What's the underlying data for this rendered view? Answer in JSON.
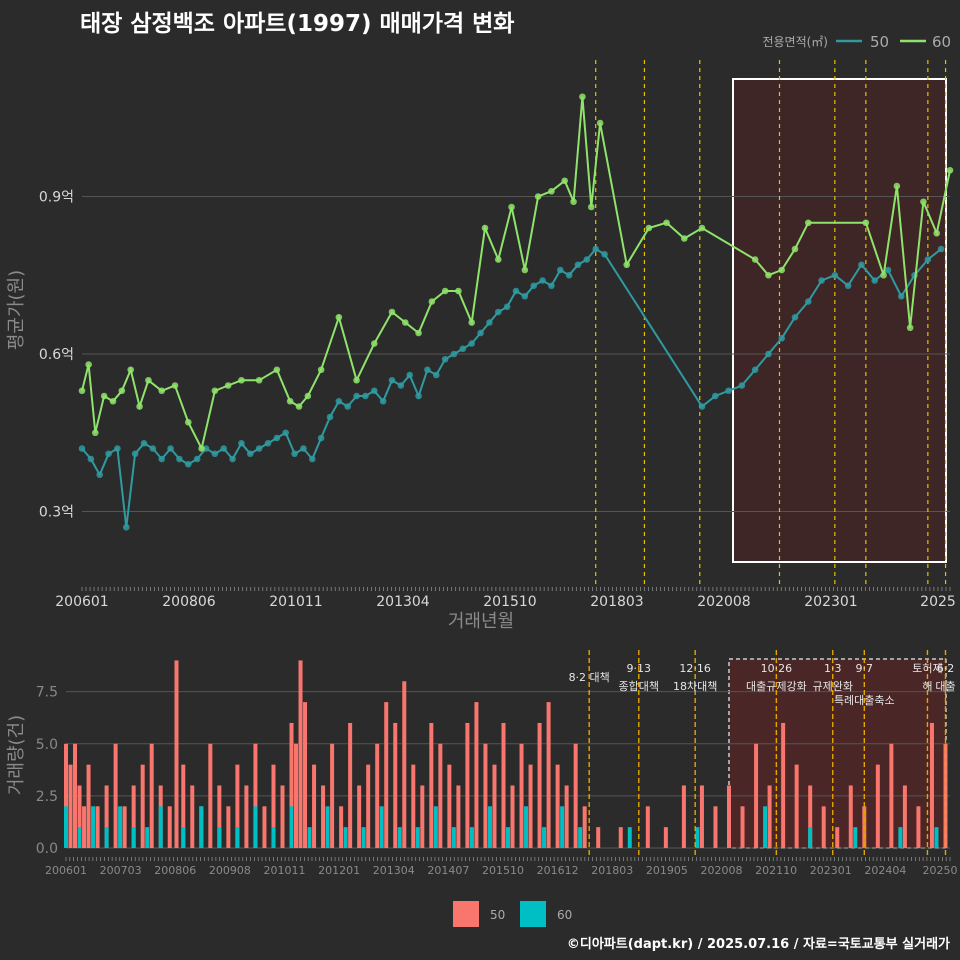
{
  "title": "태장 삼정백조 아파트(1997) 매매가격 변화",
  "credit": "©디아파트(dapt.kr) / 2025.07.16 / 자료=국토교통부 실거래가",
  "chart_data": [
    {
      "type": "line",
      "xlabel": "거래년월",
      "ylabel": "평균가(원)",
      "legend_title": "전용면적(㎡)",
      "legend_position": "top-right",
      "x_ticks": [
        "200601",
        "200806",
        "201011",
        "201304",
        "201510",
        "201803",
        "202008",
        "202301",
        "2025"
      ],
      "y_ticks": [
        {
          "v": 0.3,
          "label": "0.3억"
        },
        {
          "v": 0.6,
          "label": "0.6억"
        },
        {
          "v": 0.9,
          "label": "0.9억"
        }
      ],
      "ylim": [
        0.16,
        1.16
      ],
      "xlim": [
        2006.0,
        2025.6
      ],
      "highlight_range": [
        "2020.7",
        "2025.6"
      ],
      "policy_lines": [
        2017.6,
        2018.7,
        2019.95,
        2021.75,
        2023.0,
        2023.7,
        2025.1,
        2025.5
      ],
      "series": [
        {
          "name": "50",
          "color": "#2f9aa0",
          "x": [
            2006.0,
            2006.2,
            2006.4,
            2006.6,
            2006.8,
            2007.0,
            2007.2,
            2007.4,
            2007.6,
            2007.8,
            2008.0,
            2008.2,
            2008.4,
            2008.6,
            2008.8,
            2009.0,
            2009.2,
            2009.4,
            2009.6,
            2009.8,
            2010.0,
            2010.2,
            2010.4,
            2010.6,
            2010.8,
            2011.0,
            2011.2,
            2011.4,
            2011.6,
            2011.8,
            2012.0,
            2012.2,
            2012.4,
            2012.6,
            2012.8,
            2013.0,
            2013.2,
            2013.4,
            2013.6,
            2013.8,
            2014.0,
            2014.2,
            2014.4,
            2014.6,
            2014.8,
            2015.0,
            2015.2,
            2015.4,
            2015.6,
            2015.8,
            2016.0,
            2016.2,
            2016.4,
            2016.6,
            2016.8,
            2017.0,
            2017.2,
            2017.4,
            2017.6,
            2017.8,
            2020.0,
            2020.3,
            2020.6,
            2020.9,
            2021.2,
            2021.5,
            2021.8,
            2022.1,
            2022.4,
            2022.7,
            2023.0,
            2023.3,
            2023.6,
            2023.9,
            2024.2,
            2024.5,
            2024.8,
            2025.1,
            2025.4
          ],
          "values": [
            0.42,
            0.4,
            0.37,
            0.41,
            0.42,
            0.27,
            0.41,
            0.43,
            0.42,
            0.4,
            0.42,
            0.4,
            0.39,
            0.4,
            0.42,
            0.41,
            0.42,
            0.4,
            0.43,
            0.41,
            0.42,
            0.43,
            0.44,
            0.45,
            0.41,
            0.42,
            0.4,
            0.44,
            0.48,
            0.51,
            0.5,
            0.52,
            0.52,
            0.53,
            0.51,
            0.55,
            0.54,
            0.56,
            0.52,
            0.57,
            0.56,
            0.59,
            0.6,
            0.61,
            0.62,
            0.64,
            0.66,
            0.68,
            0.69,
            0.72,
            0.71,
            0.73,
            0.74,
            0.73,
            0.76,
            0.75,
            0.77,
            0.78,
            0.8,
            0.79,
            0.5,
            0.52,
            0.53,
            0.54,
            0.57,
            0.6,
            0.63,
            0.67,
            0.7,
            0.74,
            0.75,
            0.73,
            0.77,
            0.74,
            0.76,
            0.71,
            0.75,
            0.78,
            0.8
          ]
        },
        {
          "name": "60",
          "color": "#8fe36b",
          "x": [
            2006.0,
            2006.15,
            2006.3,
            2006.5,
            2006.7,
            2006.9,
            2007.1,
            2007.3,
            2007.5,
            2007.8,
            2008.1,
            2008.4,
            2008.7,
            2009.0,
            2009.3,
            2009.6,
            2010.0,
            2010.4,
            2010.7,
            2010.9,
            2011.1,
            2011.4,
            2011.8,
            2012.2,
            2012.6,
            2013.0,
            2013.3,
            2013.6,
            2013.9,
            2014.2,
            2014.5,
            2014.8,
            2015.1,
            2015.4,
            2015.7,
            2016.0,
            2016.3,
            2016.6,
            2016.9,
            2017.1,
            2017.3,
            2017.5,
            2017.7,
            2018.3,
            2018.8,
            2019.2,
            2019.6,
            2020.0,
            2021.2,
            2021.5,
            2021.8,
            2022.1,
            2022.4,
            2023.7,
            2024.1,
            2024.4,
            2024.7,
            2025.0,
            2025.3,
            2025.6
          ],
          "values": [
            0.53,
            0.58,
            0.45,
            0.52,
            0.51,
            0.53,
            0.57,
            0.5,
            0.55,
            0.53,
            0.54,
            0.47,
            0.42,
            0.53,
            0.54,
            0.55,
            0.55,
            0.57,
            0.51,
            0.5,
            0.52,
            0.57,
            0.67,
            0.55,
            0.62,
            0.68,
            0.66,
            0.64,
            0.7,
            0.72,
            0.72,
            0.66,
            0.84,
            0.78,
            0.88,
            0.76,
            0.9,
            0.91,
            0.93,
            0.89,
            1.09,
            0.88,
            1.04,
            0.77,
            0.84,
            0.85,
            0.82,
            0.84,
            0.78,
            0.75,
            0.76,
            0.8,
            0.85,
            0.85,
            0.75,
            0.92,
            0.65,
            0.89,
            0.83,
            0.95
          ]
        }
      ]
    },
    {
      "type": "bar",
      "xlabel": "",
      "ylabel": "거래량(건)",
      "legend_position": "bottom",
      "x_ticks": [
        "200601",
        "200703",
        "200806",
        "200908",
        "201011",
        "201201",
        "201304",
        "201407",
        "201510",
        "201612",
        "201803",
        "201905",
        "202008",
        "202110",
        "202301",
        "202404",
        "20250"
      ],
      "y_ticks": [
        {
          "v": 0,
          "label": "0.0"
        },
        {
          "v": 2.5,
          "label": "2.5"
        },
        {
          "v": 5,
          "label": "5.0"
        },
        {
          "v": 7.5,
          "label": "7.5"
        }
      ],
      "ylim": [
        0,
        9.5
      ],
      "annotations": [
        {
          "x": 2017.6,
          "text": "8·2 대책"
        },
        {
          "x": 2018.7,
          "text": "9·13 종합대책"
        },
        {
          "x": 2019.95,
          "text": "12·16 18차대책"
        },
        {
          "x": 2021.75,
          "text": "10·26 대출규제강화"
        },
        {
          "x": 2023.0,
          "text": "1·3 규제완화"
        },
        {
          "x": 2023.7,
          "text": "9·7 특례대출축소"
        },
        {
          "x": 2025.1,
          "text": "토허제 해"
        },
        {
          "x": 2025.5,
          "text": "6·2 대출"
        }
      ],
      "series": [
        {
          "name": "50",
          "color": "#f8766d",
          "x": [
            2006.0,
            2006.1,
            2006.2,
            2006.3,
            2006.4,
            2006.5,
            2006.7,
            2006.9,
            2007.1,
            2007.3,
            2007.5,
            2007.7,
            2007.9,
            2008.1,
            2008.3,
            2008.45,
            2008.6,
            2008.8,
            2009.0,
            2009.2,
            2009.4,
            2009.6,
            2009.8,
            2010.0,
            2010.2,
            2010.4,
            2010.6,
            2010.8,
            2011.0,
            2011.1,
            2011.2,
            2011.3,
            2011.5,
            2011.7,
            2011.9,
            2012.1,
            2012.3,
            2012.5,
            2012.7,
            2012.9,
            2013.1,
            2013.3,
            2013.5,
            2013.7,
            2013.9,
            2014.1,
            2014.3,
            2014.5,
            2014.7,
            2014.9,
            2015.1,
            2015.3,
            2015.5,
            2015.7,
            2015.9,
            2016.1,
            2016.3,
            2016.5,
            2016.7,
            2016.9,
            2017.1,
            2017.3,
            2017.5,
            2017.8,
            2018.3,
            2018.9,
            2019.3,
            2019.7,
            2020.1,
            2020.4,
            2020.7,
            2021.0,
            2021.3,
            2021.6,
            2021.9,
            2022.2,
            2022.5,
            2022.8,
            2023.1,
            2023.4,
            2023.7,
            2024.0,
            2024.3,
            2024.6,
            2024.9,
            2025.2,
            2025.5
          ],
          "values": [
            5,
            4,
            5,
            3,
            2,
            4,
            2,
            3,
            5,
            2,
            3,
            4,
            5,
            3,
            2,
            9,
            4,
            3,
            2,
            5,
            3,
            2,
            4,
            3,
            5,
            2,
            4,
            3,
            6,
            5,
            9,
            7,
            4,
            3,
            5,
            2,
            6,
            3,
            4,
            5,
            7,
            6,
            8,
            4,
            3,
            6,
            5,
            4,
            3,
            6,
            7,
            5,
            4,
            6,
            3,
            5,
            4,
            6,
            7,
            4,
            3,
            5,
            2,
            1,
            1,
            2,
            1,
            3,
            3,
            2,
            3,
            2,
            5,
            3,
            6,
            4,
            3,
            2,
            1,
            3,
            2,
            4,
            5,
            3,
            2,
            6,
            5
          ]
        },
        {
          "name": "60",
          "color": "#00bfc4",
          "x": [
            2006.0,
            2006.3,
            2006.6,
            2006.9,
            2007.2,
            2007.5,
            2007.8,
            2008.1,
            2008.6,
            2009.0,
            2009.4,
            2009.8,
            2010.2,
            2010.6,
            2011.0,
            2011.4,
            2011.8,
            2012.2,
            2012.6,
            2013.0,
            2013.4,
            2013.8,
            2014.2,
            2014.6,
            2015.0,
            2015.4,
            2015.8,
            2016.2,
            2016.6,
            2017.0,
            2017.4,
            2018.5,
            2020.0,
            2021.5,
            2022.5,
            2023.5,
            2024.5,
            2025.3
          ],
          "values": [
            2,
            1,
            2,
            1,
            2,
            1,
            1,
            2,
            1,
            2,
            1,
            1,
            2,
            1,
            2,
            1,
            2,
            1,
            1,
            2,
            1,
            1,
            2,
            1,
            1,
            2,
            1,
            2,
            1,
            2,
            1,
            1,
            1,
            2,
            1,
            1,
            1,
            1
          ]
        }
      ]
    }
  ]
}
